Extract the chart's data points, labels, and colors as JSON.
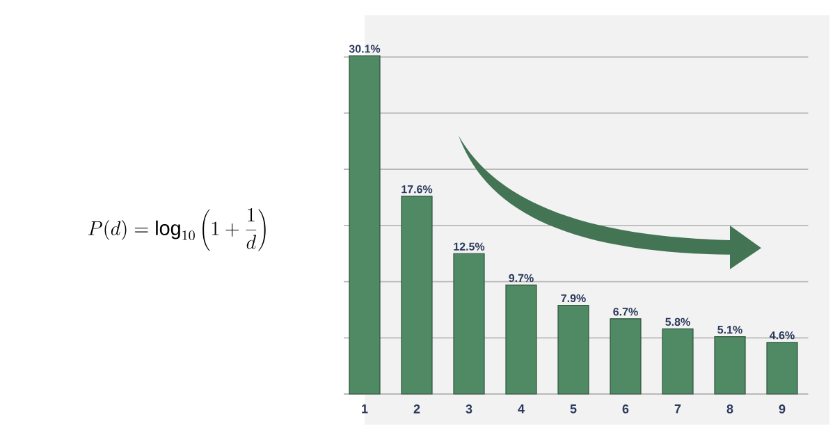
{
  "chart_data": {
    "type": "bar",
    "annotations": [
      "P(d)=\\log_{10}\\left(1+\\frac{1}{d}\\right)"
    ],
    "categories": [
      "1",
      "2",
      "3",
      "4",
      "5",
      "6",
      "7",
      "8",
      "9"
    ],
    "values": [
      30.1,
      17.6,
      12.5,
      9.7,
      7.9,
      6.7,
      5.8,
      5.1,
      4.6
    ],
    "value_labels": [
      "30.1%",
      "17.6%",
      "12.5%",
      "9.7%",
      "7.9%",
      "6.7%",
      "5.8%",
      "5.1%",
      "4.6%"
    ],
    "color": "#4f8a64",
    "yticks": [
      {
        "value": 0,
        "label": null
      },
      {
        "value": 5,
        "label": null
      },
      {
        "value": 10,
        "label": null
      },
      {
        "value": 15,
        "label": null
      },
      {
        "value": 20,
        "label": null
      },
      {
        "value": 25,
        "label": null
      },
      {
        "value": 30,
        "label": null
      }
    ],
    "grid": "y"
  }
}
